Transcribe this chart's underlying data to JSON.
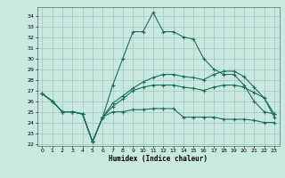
{
  "title": "",
  "xlabel": "Humidex (Indice chaleur)",
  "xlim": [
    -0.5,
    23.5
  ],
  "ylim": [
    21.8,
    34.8
  ],
  "yticks": [
    22,
    23,
    24,
    25,
    26,
    27,
    28,
    29,
    30,
    31,
    32,
    33,
    34
  ],
  "xticks": [
    0,
    1,
    2,
    3,
    4,
    5,
    6,
    7,
    8,
    9,
    10,
    11,
    12,
    13,
    14,
    15,
    16,
    17,
    18,
    19,
    20,
    21,
    22,
    23
  ],
  "bg_color": "#c8e8e0",
  "grid_color": "#a0c8c0",
  "line_color": "#1a6e60",
  "curves": [
    [
      26.7,
      26.0,
      25.0,
      25.0,
      24.8,
      22.2,
      24.5,
      27.5,
      30.0,
      32.5,
      32.5,
      34.3,
      32.5,
      32.5,
      32.0,
      31.8,
      30.0,
      29.0,
      28.5,
      28.5,
      27.5,
      26.0,
      25.0,
      24.8
    ],
    [
      26.7,
      26.0,
      25.0,
      25.0,
      24.8,
      22.2,
      24.5,
      25.0,
      25.0,
      25.2,
      25.2,
      25.3,
      25.3,
      25.3,
      24.5,
      24.5,
      24.5,
      24.5,
      24.3,
      24.3,
      24.3,
      24.2,
      24.0,
      24.0
    ],
    [
      26.7,
      26.0,
      25.0,
      25.0,
      24.8,
      22.2,
      24.5,
      25.5,
      26.2,
      27.0,
      27.3,
      27.5,
      27.5,
      27.5,
      27.3,
      27.2,
      27.0,
      27.3,
      27.5,
      27.5,
      27.3,
      26.8,
      26.3,
      24.5
    ],
    [
      26.7,
      26.0,
      25.0,
      25.0,
      24.8,
      22.2,
      24.5,
      25.8,
      26.5,
      27.2,
      27.8,
      28.2,
      28.5,
      28.5,
      28.3,
      28.2,
      28.0,
      28.5,
      28.8,
      28.8,
      28.3,
      27.3,
      26.3,
      24.8
    ]
  ]
}
